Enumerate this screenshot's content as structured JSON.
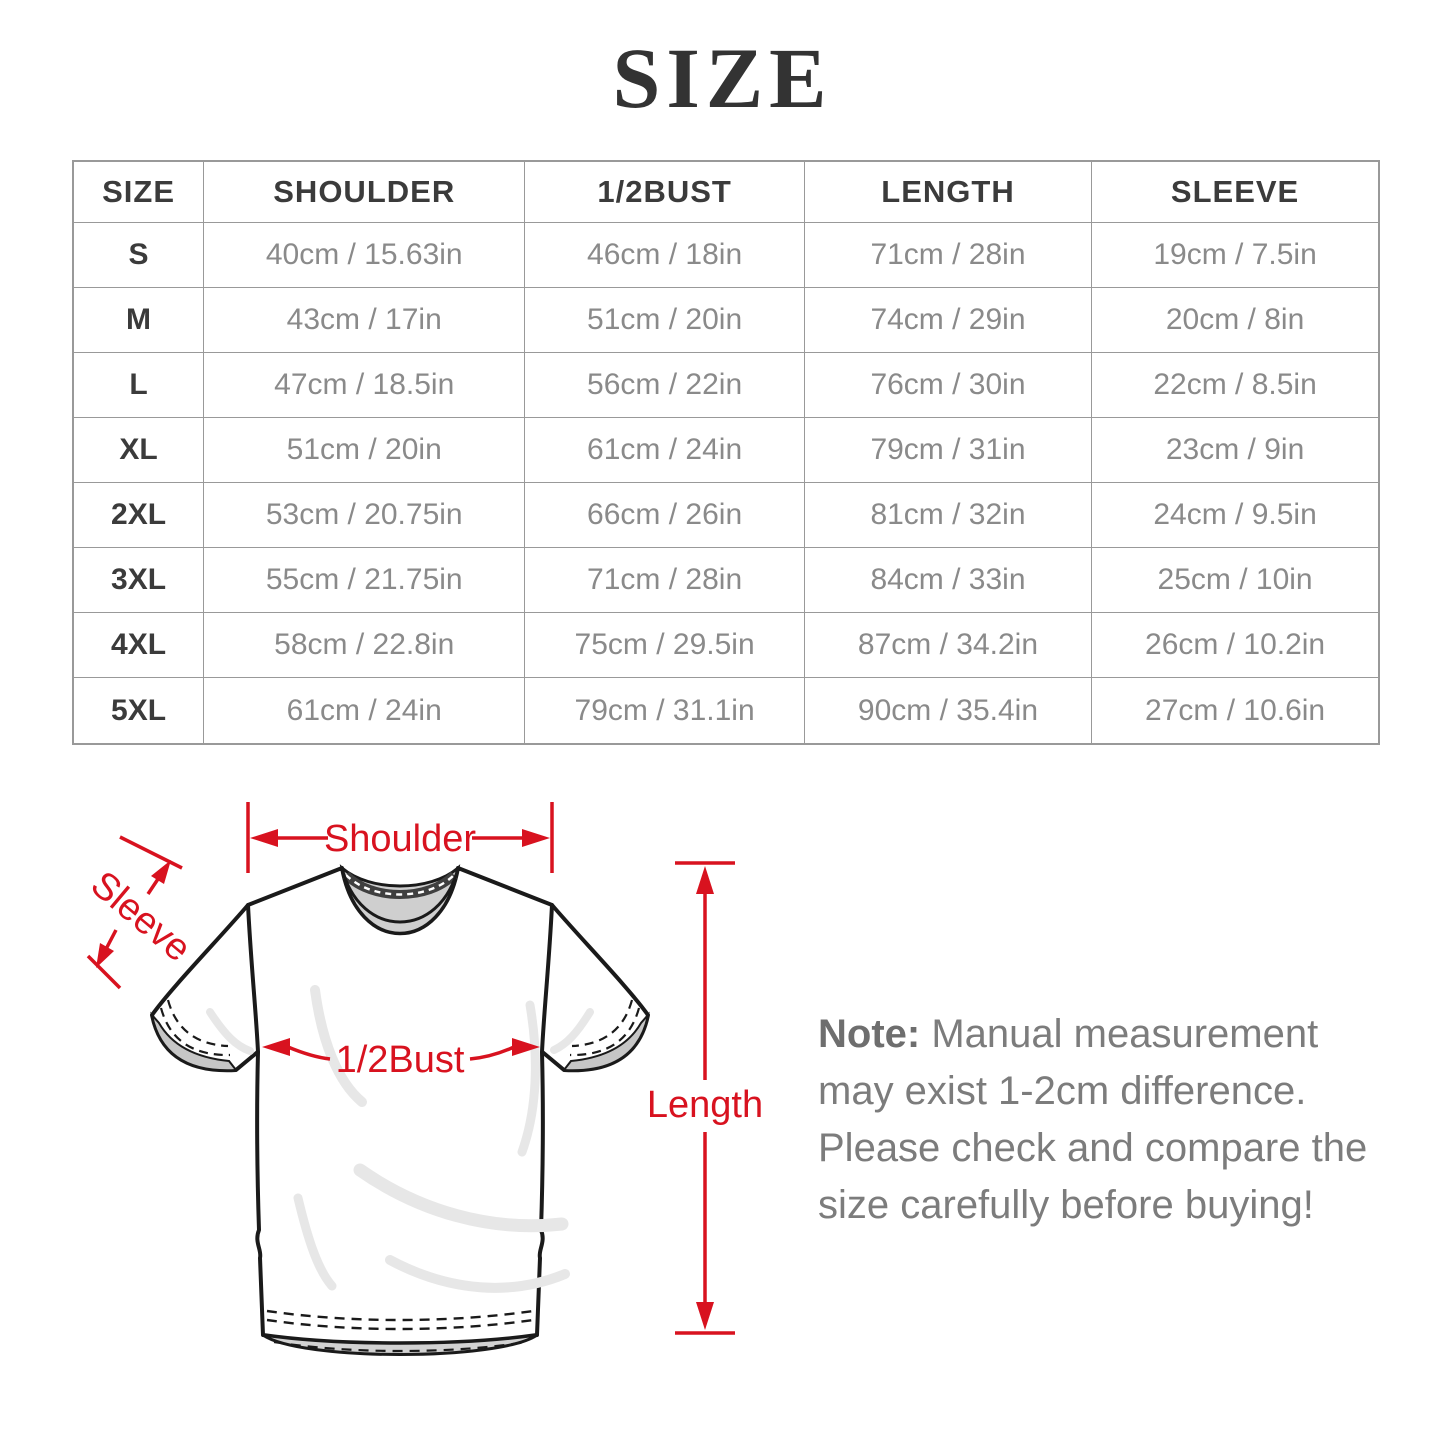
{
  "title": "SIZE",
  "table": {
    "headers": [
      "SIZE",
      "SHOULDER",
      "1/2BUST",
      "LENGTH",
      "SLEEVE"
    ],
    "rows": [
      {
        "size": "S",
        "shoulder": "40cm / 15.63in",
        "bust": "46cm / 18in",
        "length": "71cm / 28in",
        "sleeve": "19cm / 7.5in"
      },
      {
        "size": "M",
        "shoulder": "43cm / 17in",
        "bust": "51cm / 20in",
        "length": "74cm / 29in",
        "sleeve": "20cm / 8in"
      },
      {
        "size": "L",
        "shoulder": "47cm / 18.5in",
        "bust": "56cm / 22in",
        "length": "76cm / 30in",
        "sleeve": "22cm / 8.5in"
      },
      {
        "size": "XL",
        "shoulder": "51cm / 20in",
        "bust": "61cm / 24in",
        "length": "79cm / 31in",
        "sleeve": "23cm / 9in"
      },
      {
        "size": "2XL",
        "shoulder": "53cm / 20.75in",
        "bust": "66cm / 26in",
        "length": "81cm / 32in",
        "sleeve": "24cm / 9.5in"
      },
      {
        "size": "3XL",
        "shoulder": "55cm / 21.75in",
        "bust": "71cm / 28in",
        "length": "84cm / 33in",
        "sleeve": "25cm / 10in"
      },
      {
        "size": "4XL",
        "shoulder": "58cm / 22.8in",
        "bust": "75cm / 29.5in",
        "length": "87cm / 34.2in",
        "sleeve": "26cm / 10.2in"
      },
      {
        "size": "5XL",
        "shoulder": "61cm / 24in",
        "bust": "79cm / 31.1in",
        "length": "90cm / 35.4in",
        "sleeve": "27cm / 10.6in"
      }
    ]
  },
  "diagram": {
    "labels": {
      "shoulder": "Shoulder",
      "sleeve": "Sleeve",
      "bust": "1/2Bust",
      "length": "Length"
    },
    "annotation_color": "#d8121f"
  },
  "note": {
    "prefix": "Note:",
    "text": "Manual measurement may exist 1-2cm difference. Please check and compare the size carefully before buying!"
  }
}
